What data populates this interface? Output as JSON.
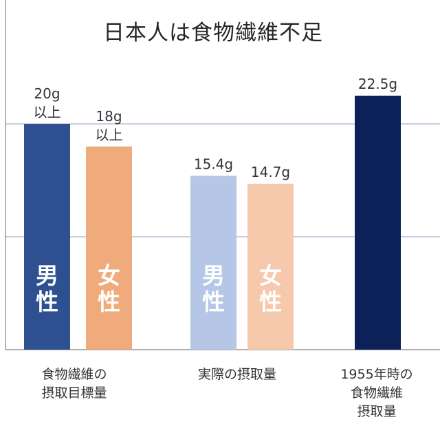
{
  "chart_data": {
    "type": "bar",
    "title": "日本人は食物繊維不足",
    "unit": "g",
    "ylim": [
      0,
      30
    ],
    "gridlines": [
      10,
      20,
      30
    ],
    "groups": [
      {
        "label_lines": [
          "食物繊維の",
          "摂取目標量"
        ],
        "bars": [
          {
            "series": "男性",
            "value": 20,
            "label_lines": [
              "20g",
              "以上"
            ],
            "inner_lines": [
              "男",
              "性"
            ],
            "color": "#2e5090",
            "text_color": "#ffffff"
          },
          {
            "series": "女性",
            "value": 18,
            "label_lines": [
              "18g",
              "以上"
            ],
            "inner_lines": [
              "女",
              "性"
            ],
            "color": "#f0ab7c",
            "text_color": "#ffffff"
          }
        ]
      },
      {
        "label_lines": [
          "実際の摂取量"
        ],
        "bars": [
          {
            "series": "男性",
            "value": 15.4,
            "label_lines": [
              "15.4g"
            ],
            "inner_lines": [
              "男",
              "性"
            ],
            "color": "#b5c6e6",
            "text_color": "#ffffff"
          },
          {
            "series": "女性",
            "value": 14.7,
            "label_lines": [
              "14.7g"
            ],
            "inner_lines": [
              "女",
              "性"
            ],
            "color": "#f6c9ad",
            "text_color": "#ffffff"
          }
        ]
      },
      {
        "label_lines": [
          "1955年時の",
          "食物繊維",
          "摂取量"
        ],
        "bars": [
          {
            "series": "",
            "value": 22.5,
            "label_lines": [
              "22.5g"
            ],
            "inner_lines": [],
            "color": "#0b2157",
            "text_color": "#ffffff"
          }
        ]
      }
    ],
    "colors": {
      "axis": "#808080",
      "grid": "#8ea1bd",
      "text": "#333333"
    }
  }
}
